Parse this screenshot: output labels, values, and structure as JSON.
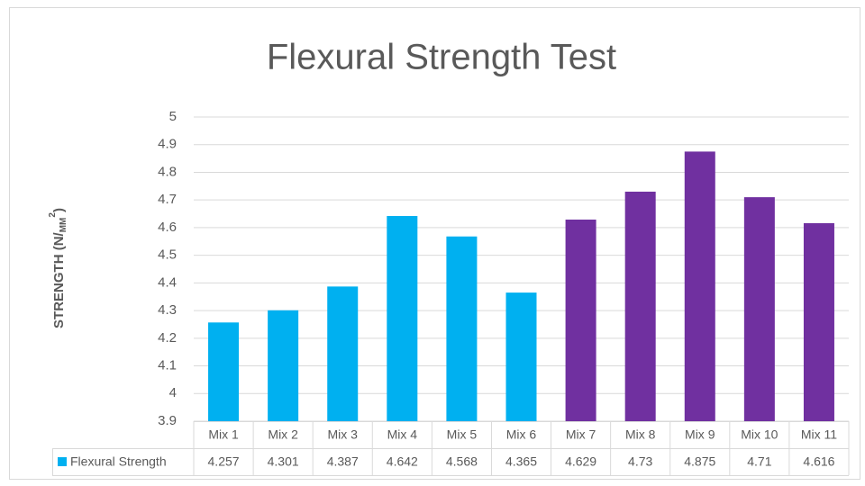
{
  "chart_data": {
    "type": "bar",
    "title": "Flexural Strength Test",
    "y_label": {
      "main": "STRENGTH (N/",
      "sub": "MM",
      "sup": "2",
      "end": ")"
    },
    "categories": [
      "Mix 1",
      "Mix 2",
      "Mix 3",
      "Mix 4",
      "Mix 5",
      "Mix 6",
      "Mix 7",
      "Mix 8",
      "Mix 9",
      "Mix 10",
      "Mix 11"
    ],
    "series": [
      {
        "name": "Flexural Strength",
        "color": "#00b0f0",
        "colors": [
          "#00b0f0",
          "#00b0f0",
          "#00b0f0",
          "#00b0f0",
          "#00b0f0",
          "#00b0f0",
          "#7030a0",
          "#7030a0",
          "#7030a0",
          "#7030a0",
          "#7030a0"
        ],
        "values": [
          4.257,
          4.301,
          4.387,
          4.642,
          4.568,
          4.365,
          4.629,
          4.73,
          4.875,
          4.71,
          4.616
        ]
      }
    ],
    "ylim": [
      3.9,
      5
    ],
    "yticks": [
      3.9,
      4,
      4.1,
      4.2,
      4.3,
      4.4,
      4.5,
      4.6,
      4.7,
      4.8,
      4.9,
      5
    ],
    "grid": true,
    "data_table": true
  }
}
